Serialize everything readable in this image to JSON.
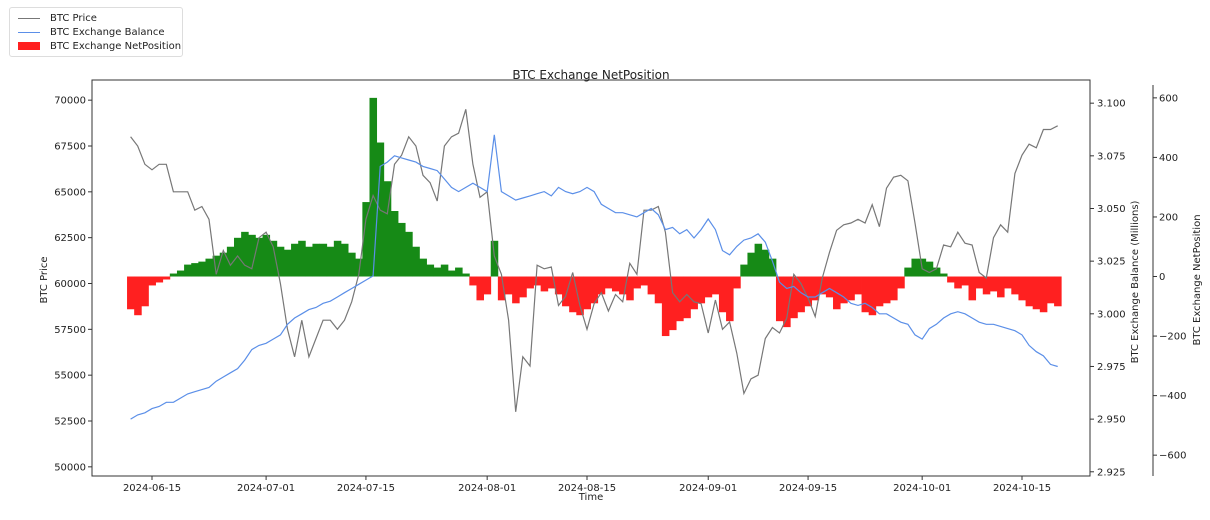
{
  "chart_data": {
    "type": "bar+line",
    "title": "BTC Exchange NetPosition",
    "xlabel": "Time",
    "ylabel_left": "BTC Price",
    "ylabel_right1": "BTC Exchange Balance (Millions)",
    "ylabel_right2": "BTC Exchange NetPosition",
    "legend_position": "top-left",
    "x_start_date": "2024-06-12",
    "x_step": "1 day",
    "x_ticks": [
      "2024-06-15",
      "2024-07-01",
      "2024-07-15",
      "2024-08-01",
      "2024-08-15",
      "2024-09-01",
      "2024-09-15",
      "2024-10-01",
      "2024-10-15"
    ],
    "y_left_ticks": [
      "50000",
      "52500",
      "55000",
      "57500",
      "60000",
      "62500",
      "65000",
      "67500",
      "70000"
    ],
    "y_left_range": [
      49500,
      71100
    ],
    "y_right1_ticks": [
      "2.925",
      "2.950",
      "2.975",
      "3.000",
      "3.025",
      "3.050",
      "3.075",
      "3.100"
    ],
    "y_right1_range": [
      2.923,
      3.111
    ],
    "y_right2_ticks": [
      "−600",
      "−400",
      "−200",
      "0",
      "200",
      "400",
      "600"
    ],
    "y_right2_range": [
      -670,
      660
    ],
    "colors": {
      "price": "#777777",
      "balance": "#5b8fe8",
      "positive": "#168a16",
      "negative": "#ff2020"
    },
    "series": [
      {
        "name": "BTC Price",
        "axis": "left",
        "values": [
          68000,
          67500,
          66500,
          66200,
          66500,
          66500,
          65000,
          65000,
          65000,
          64000,
          64200,
          63500,
          60500,
          61800,
          61000,
          61500,
          61000,
          60800,
          62500,
          62800,
          62000,
          60000,
          57500,
          56000,
          58000,
          56000,
          57000,
          58000,
          58000,
          57500,
          58000,
          59000,
          60500,
          63500,
          64800,
          64000,
          63800,
          66500,
          67000,
          68000,
          67500,
          65900,
          65500,
          64500,
          67500,
          68000,
          68200,
          69500,
          66500,
          64700,
          65000,
          61500,
          60500,
          58000,
          53000,
          56000,
          55500,
          61000,
          60800,
          60900,
          58800,
          59300,
          60600,
          58800,
          57500,
          58900,
          59500,
          58500,
          59400,
          59000,
          61100,
          60500,
          64000,
          64000,
          64200,
          62800,
          59500,
          59000,
          59400,
          59000,
          58900,
          57300,
          59100,
          57500,
          57900,
          56200,
          54000,
          54800,
          55000,
          57000,
          57600,
          57300,
          58100,
          60500,
          60000,
          59200,
          58200,
          60300,
          61700,
          62900,
          63200,
          63300,
          63500,
          63300,
          64300,
          63100,
          65200,
          65800,
          65900,
          65600,
          63300,
          60800,
          60600,
          60800,
          62100,
          62000,
          62800,
          62200,
          62100,
          60600,
          60300,
          62500,
          63200,
          62800,
          66000,
          67000,
          67600,
          67400,
          68400,
          68400,
          68600
        ]
      },
      {
        "name": "BTC Exchange Balance",
        "axis": "right1",
        "values": [
          2.95,
          2.952,
          2.953,
          2.955,
          2.956,
          2.958,
          2.958,
          2.96,
          2.962,
          2.963,
          2.964,
          2.965,
          2.968,
          2.97,
          2.972,
          2.974,
          2.978,
          2.983,
          2.985,
          2.986,
          2.988,
          2.99,
          2.995,
          2.998,
          3.0,
          3.002,
          3.003,
          3.005,
          3.006,
          3.008,
          3.01,
          3.012,
          3.014,
          3.016,
          3.018,
          3.07,
          3.072,
          3.075,
          3.074,
          3.073,
          3.072,
          3.07,
          3.069,
          3.068,
          3.064,
          3.06,
          3.058,
          3.06,
          3.062,
          3.06,
          3.058,
          3.085,
          3.058,
          3.056,
          3.054,
          3.055,
          3.056,
          3.057,
          3.058,
          3.056,
          3.06,
          3.058,
          3.057,
          3.058,
          3.06,
          3.058,
          3.052,
          3.05,
          3.048,
          3.048,
          3.047,
          3.046,
          3.048,
          3.05,
          3.047,
          3.04,
          3.041,
          3.038,
          3.04,
          3.036,
          3.04,
          3.045,
          3.04,
          3.03,
          3.028,
          3.032,
          3.035,
          3.036,
          3.038,
          3.034,
          3.025,
          3.015,
          3.012,
          3.013,
          3.01,
          3.008,
          3.008,
          3.01,
          3.012,
          3.01,
          3.008,
          3.005,
          3.004,
          3.005,
          3.003,
          3.0,
          3.0,
          2.998,
          2.996,
          2.995,
          2.99,
          2.988,
          2.993,
          2.995,
          2.998,
          3.0,
          3.001,
          3.0,
          2.998,
          2.996,
          2.995,
          2.995,
          2.994,
          2.993,
          2.992,
          2.99,
          2.985,
          2.982,
          2.98,
          2.976,
          2.975
        ]
      },
      {
        "name": "BTC Exchange NetPosition",
        "axis": "right2",
        "values": [
          -110,
          -130,
          -100,
          -30,
          -20,
          -10,
          10,
          20,
          40,
          45,
          50,
          60,
          70,
          80,
          100,
          130,
          150,
          140,
          130,
          140,
          120,
          100,
          90,
          110,
          120,
          100,
          110,
          110,
          100,
          120,
          110,
          80,
          60,
          250,
          600,
          450,
          320,
          220,
          180,
          150,
          100,
          60,
          40,
          30,
          40,
          20,
          30,
          10,
          -30,
          -80,
          -60,
          120,
          -80,
          -60,
          -90,
          -70,
          -40,
          -30,
          -50,
          -40,
          -60,
          -100,
          -120,
          -130,
          -110,
          -90,
          -60,
          -40,
          -50,
          -60,
          -80,
          -40,
          -30,
          -60,
          -90,
          -200,
          -180,
          -150,
          -140,
          -110,
          -90,
          -70,
          -60,
          -120,
          -150,
          -40,
          40,
          80,
          110,
          90,
          60,
          -150,
          -170,
          -140,
          -120,
          -100,
          -80,
          -60,
          -70,
          -110,
          -90,
          -80,
          -60,
          -120,
          -130,
          -100,
          -90,
          -80,
          -40,
          30,
          60,
          60,
          50,
          30,
          10,
          -20,
          -40,
          -30,
          -80,
          -40,
          -60,
          -50,
          -70,
          -40,
          -60,
          -80,
          -100,
          -110,
          -120,
          -90,
          -100
        ]
      }
    ]
  }
}
